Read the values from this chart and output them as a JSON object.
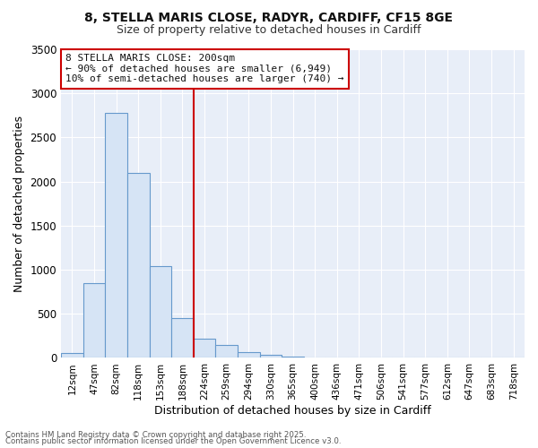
{
  "title_line1": "8, STELLA MARIS CLOSE, RADYR, CARDIFF, CF15 8GE",
  "title_line2": "Size of property relative to detached houses in Cardiff",
  "xlabel": "Distribution of detached houses by size in Cardiff",
  "ylabel": "Number of detached properties",
  "bin_labels": [
    "12sqm",
    "47sqm",
    "82sqm",
    "118sqm",
    "153sqm",
    "188sqm",
    "224sqm",
    "259sqm",
    "294sqm",
    "330sqm",
    "365sqm",
    "400sqm",
    "436sqm",
    "471sqm",
    "506sqm",
    "541sqm",
    "577sqm",
    "612sqm",
    "647sqm",
    "683sqm",
    "718sqm"
  ],
  "bar_heights": [
    55,
    850,
    2775,
    2100,
    1040,
    450,
    215,
    145,
    70,
    40,
    15,
    8,
    5,
    3,
    2,
    1,
    1,
    0,
    0,
    0,
    0
  ],
  "bar_color": "#d6e4f5",
  "bar_edge_color": "#6699cc",
  "vline_x": 5.5,
  "vline_color": "#cc0000",
  "ylim": [
    0,
    3500
  ],
  "yticks": [
    0,
    500,
    1000,
    1500,
    2000,
    2500,
    3000,
    3500
  ],
  "annotation_text": "8 STELLA MARIS CLOSE: 200sqm\n← 90% of detached houses are smaller (6,949)\n10% of semi-detached houses are larger (740) →",
  "annotation_box_color": "#cc0000",
  "footnote1": "Contains HM Land Registry data © Crown copyright and database right 2025.",
  "footnote2": "Contains public sector information licensed under the Open Government Licence v3.0.",
  "background_color": "#ffffff",
  "plot_bg_color": "#e8eef8",
  "grid_color": "#ffffff"
}
